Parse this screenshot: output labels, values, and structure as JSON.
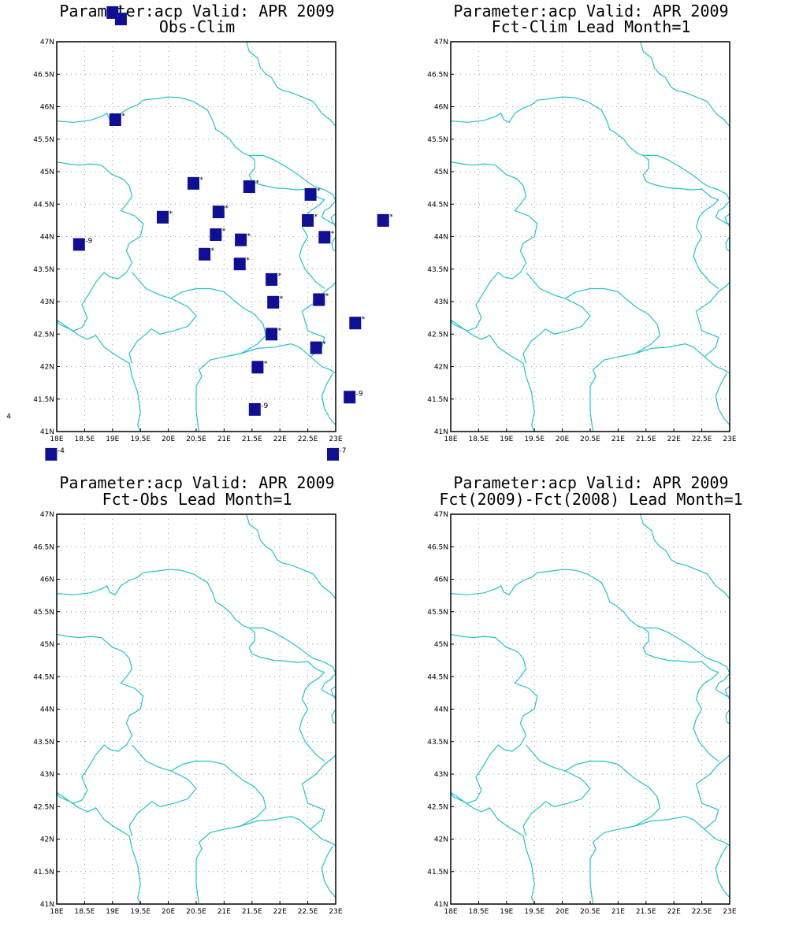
{
  "colors": {
    "border": "#22c3c6",
    "marker": "#0f0f94",
    "grid": "#9a9a9a",
    "frame": "#000000"
  },
  "axes": {
    "lon_ticks": [
      "18E",
      "18.5E",
      "19E",
      "19.5E",
      "20E",
      "20.5E",
      "21E",
      "21.5E",
      "22E",
      "22.5E",
      "23E"
    ],
    "lat_ticks": [
      "47N",
      "46.5N",
      "46N",
      "45.5N",
      "45N",
      "44.5N",
      "44N",
      "43.5N",
      "43N",
      "42.5N",
      "42N",
      "41.5N",
      "41N"
    ],
    "lon_range": [
      18,
      23
    ],
    "lat_range": [
      41,
      47
    ],
    "grid": "dotted"
  },
  "panels": [
    {
      "line1": "Parameter:acp Valid: APR 2009",
      "line2": "Obs-Clim"
    },
    {
      "line1": "Parameter:acp Valid: APR 2009",
      "line2": "Fct-Clim Lead Month=1"
    },
    {
      "line1": "Parameter:acp Valid: APR 2009",
      "line2": "Fct-Obs Lead Month=1"
    },
    {
      "line1": "Parameter:acp Valid: APR 2009",
      "line2": "Fct(2009)-Fct(2008) Lead Month=1"
    }
  ],
  "chart_data": {
    "type": "scatter",
    "panel": "Obs-Clim",
    "stations": [
      {
        "lon": 19.0,
        "lat": 47.45,
        "label": "*"
      },
      {
        "lon": 19.15,
        "lat": 47.35,
        "label": ""
      },
      {
        "lon": 19.05,
        "lat": 45.8,
        "label": "*"
      },
      {
        "lon": 20.45,
        "lat": 44.82,
        "label": "*"
      },
      {
        "lon": 21.45,
        "lat": 44.77,
        "label": "*"
      },
      {
        "lon": 22.55,
        "lat": 44.65,
        "label": "*"
      },
      {
        "lon": 19.9,
        "lat": 44.3,
        "label": "*"
      },
      {
        "lon": 20.9,
        "lat": 44.38,
        "label": "*"
      },
      {
        "lon": 22.5,
        "lat": 44.25,
        "label": "*"
      },
      {
        "lon": 23.85,
        "lat": 44.25,
        "label": "*"
      },
      {
        "lon": 18.4,
        "lat": 43.88,
        "label": "-9"
      },
      {
        "lon": 20.85,
        "lat": 44.03,
        "label": "*"
      },
      {
        "lon": 21.3,
        "lat": 43.95,
        "label": "*"
      },
      {
        "lon": 22.8,
        "lat": 43.99,
        "label": "*"
      },
      {
        "lon": 20.65,
        "lat": 43.73,
        "label": "*"
      },
      {
        "lon": 21.28,
        "lat": 43.58,
        "label": "*"
      },
      {
        "lon": 21.85,
        "lat": 43.34,
        "label": "*"
      },
      {
        "lon": 21.88,
        "lat": 42.99,
        "label": "*"
      },
      {
        "lon": 22.7,
        "lat": 43.03,
        "label": "*"
      },
      {
        "lon": 23.35,
        "lat": 42.67,
        "label": "*"
      },
      {
        "lon": 21.85,
        "lat": 42.5,
        "label": "*"
      },
      {
        "lon": 22.65,
        "lat": 42.29,
        "label": "*"
      },
      {
        "lon": 21.6,
        "lat": 41.99,
        "label": "*"
      },
      {
        "lon": 23.25,
        "lat": 41.53,
        "label": "-9"
      },
      {
        "lon": 21.55,
        "lat": 41.34,
        "label": "-9"
      },
      {
        "lon": 17.9,
        "lat": 40.65,
        "label": "-4"
      },
      {
        "lon": 22.95,
        "lat": 40.65,
        "label": "-7"
      }
    ],
    "stray_labels": [
      {
        "lon": 17.1,
        "lat": 41.2,
        "label": "4"
      }
    ]
  },
  "borders": [
    [
      [
        18,
        45.78
      ],
      [
        18.3,
        45.76
      ],
      [
        18.6,
        45.79
      ],
      [
        18.8,
        45.85
      ],
      [
        18.9,
        45.9
      ],
      [
        18.95,
        45.8
      ],
      [
        19.05,
        45.76
      ],
      [
        19.15,
        45.9
      ],
      [
        19.3,
        45.98
      ],
      [
        19.45,
        46.03
      ],
      [
        19.55,
        46.1
      ],
      [
        19.75,
        46.12
      ],
      [
        20,
        46.15
      ],
      [
        20.2,
        46.14
      ],
      [
        20.3,
        46.12
      ],
      [
        20.45,
        46.08
      ],
      [
        20.7,
        45.95
      ],
      [
        20.8,
        45.78
      ],
      [
        20.85,
        45.65
      ],
      [
        20.95,
        45.6
      ],
      [
        21.1,
        45.5
      ],
      [
        21.2,
        45.38
      ],
      [
        21.35,
        45.28
      ],
      [
        21.45,
        45.25
      ],
      [
        21.55,
        45.18
      ],
      [
        21.55,
        45.05
      ],
      [
        21.45,
        44.95
      ],
      [
        21.5,
        44.85
      ],
      [
        21.65,
        44.8
      ],
      [
        21.9,
        44.75
      ],
      [
        22.1,
        44.74
      ],
      [
        22.3,
        44.72
      ],
      [
        22.5,
        44.73
      ],
      [
        22.65,
        44.62
      ],
      [
        22.75,
        44.58
      ],
      [
        22.8,
        44.57
      ]
    ],
    [
      [
        21.45,
        45.25
      ],
      [
        21.7,
        45.25
      ],
      [
        21.9,
        45.18
      ],
      [
        22.1,
        45.08
      ],
      [
        22.3,
        44.97
      ],
      [
        22.5,
        44.84
      ],
      [
        22.6,
        44.78
      ],
      [
        22.8,
        44.72
      ],
      [
        22.95,
        44.65
      ],
      [
        23,
        44.55
      ]
    ],
    [
      [
        21.4,
        47
      ],
      [
        21.45,
        46.85
      ],
      [
        21.6,
        46.75
      ],
      [
        21.65,
        46.6
      ],
      [
        21.75,
        46.5
      ],
      [
        21.85,
        46.45
      ],
      [
        21.95,
        46.3
      ],
      [
        22.05,
        46.25
      ],
      [
        22.2,
        46.22
      ],
      [
        22.4,
        46.15
      ],
      [
        22.6,
        46.08
      ],
      [
        22.75,
        45.9
      ],
      [
        22.9,
        45.8
      ],
      [
        23,
        45.7
      ]
    ],
    [
      [
        18,
        45.15
      ],
      [
        18.2,
        45.12
      ],
      [
        18.4,
        45.1
      ],
      [
        18.6,
        45.12
      ],
      [
        18.8,
        45.1
      ],
      [
        19.0,
        44.95
      ],
      [
        19.1,
        44.92
      ],
      [
        19.2,
        44.88
      ],
      [
        19.3,
        44.78
      ],
      [
        19.35,
        44.62
      ],
      [
        19.25,
        44.5
      ],
      [
        19.15,
        44.4
      ],
      [
        19.4,
        44.32
      ],
      [
        19.55,
        44.2
      ],
      [
        19.5,
        44.0
      ],
      [
        19.3,
        43.9
      ],
      [
        19.25,
        43.78
      ],
      [
        19.35,
        43.6
      ],
      [
        19.25,
        43.45
      ],
      [
        19.1,
        43.35
      ],
      [
        18.95,
        43.38
      ],
      [
        18.85,
        43.45
      ],
      [
        18.7,
        43.3
      ],
      [
        18.6,
        43.15
      ],
      [
        18.45,
        42.95
      ],
      [
        18.55,
        42.75
      ],
      [
        18.45,
        42.6
      ],
      [
        18.3,
        42.55
      ],
      [
        18.05,
        42.65
      ],
      [
        18,
        42.7
      ]
    ],
    [
      [
        18,
        42.72
      ],
      [
        18.2,
        42.6
      ],
      [
        18.4,
        42.48
      ],
      [
        18.55,
        42.42
      ],
      [
        18.7,
        42.48
      ],
      [
        18.85,
        42.3
      ],
      [
        19.05,
        42.18
      ],
      [
        19.3,
        42.05
      ],
      [
        19.35,
        41.85
      ],
      [
        19.45,
        41.6
      ],
      [
        19.5,
        41.3
      ],
      [
        19.45,
        41.1
      ],
      [
        19.5,
        41
      ]
    ],
    [
      [
        19.35,
        43.45
      ],
      [
        19.6,
        43.2
      ],
      [
        19.85,
        43.1
      ],
      [
        20.05,
        43.05
      ],
      [
        20.35,
        42.92
      ],
      [
        20.5,
        42.78
      ],
      [
        20.35,
        42.62
      ],
      [
        20.1,
        42.55
      ],
      [
        19.85,
        42.5
      ],
      [
        19.7,
        42.58
      ],
      [
        19.6,
        42.5
      ],
      [
        19.45,
        42.4
      ],
      [
        19.3,
        42.2
      ],
      [
        19.35,
        42.05
      ]
    ],
    [
      [
        20.05,
        43.05
      ],
      [
        20.25,
        43.15
      ],
      [
        20.5,
        43.2
      ],
      [
        20.75,
        43.2
      ],
      [
        21.0,
        43.15
      ],
      [
        21.2,
        43.0
      ],
      [
        21.35,
        42.9
      ],
      [
        21.55,
        42.8
      ],
      [
        21.7,
        42.65
      ],
      [
        21.75,
        42.48
      ],
      [
        21.6,
        42.35
      ],
      [
        21.3,
        42.2
      ],
      [
        21.0,
        42.15
      ],
      [
        20.75,
        42.1
      ],
      [
        20.55,
        41.95
      ],
      [
        20.6,
        41.85
      ],
      [
        20.5,
        41.7
      ],
      [
        20.5,
        41.5
      ],
      [
        20.5,
        41.3
      ],
      [
        20.55,
        41
      ]
    ],
    [
      [
        21.3,
        42.2
      ],
      [
        21.6,
        42.28
      ],
      [
        21.9,
        42.3
      ],
      [
        22.2,
        42.35
      ],
      [
        22.35,
        42.3
      ],
      [
        22.55,
        42.15
      ],
      [
        22.75,
        42.0
      ],
      [
        22.9,
        41.95
      ],
      [
        23,
        41.9
      ]
    ],
    [
      [
        22.55,
        42.15
      ],
      [
        22.75,
        42.3
      ],
      [
        22.8,
        42.45
      ],
      [
        22.5,
        42.55
      ],
      [
        22.45,
        42.7
      ],
      [
        22.4,
        42.85
      ],
      [
        22.65,
        43.0
      ],
      [
        22.8,
        43.15
      ],
      [
        22.95,
        43.25
      ],
      [
        23,
        43.3
      ]
    ],
    [
      [
        22.8,
        44.57
      ],
      [
        22.7,
        44.48
      ],
      [
        22.55,
        44.4
      ],
      [
        22.45,
        44.3
      ],
      [
        22.4,
        44.15
      ],
      [
        22.5,
        44.0
      ],
      [
        22.4,
        43.85
      ],
      [
        22.35,
        43.7
      ],
      [
        22.45,
        43.5
      ],
      [
        22.55,
        43.4
      ],
      [
        22.65,
        43.3
      ],
      [
        22.8,
        43.2
      ]
    ],
    [
      [
        23,
        44.55
      ],
      [
        22.9,
        44.45
      ],
      [
        22.8,
        44.4
      ],
      [
        22.75,
        44.3
      ],
      [
        22.85,
        44.25
      ],
      [
        22.95,
        44.2
      ],
      [
        23,
        44.2
      ]
    ],
    [
      [
        22.95,
        41.9
      ],
      [
        22.85,
        41.75
      ],
      [
        22.75,
        41.55
      ],
      [
        22.8,
        41.35
      ],
      [
        22.9,
        41.2
      ],
      [
        23,
        41.1
      ]
    ],
    [
      [
        23,
        44.0
      ],
      [
        22.93,
        43.9
      ],
      [
        22.95,
        43.8
      ],
      [
        23,
        43.78
      ]
    ],
    [
      [
        23,
        44.35
      ],
      [
        22.92,
        44.3
      ],
      [
        22.95,
        44.22
      ],
      [
        23,
        44.15
      ]
    ]
  ]
}
